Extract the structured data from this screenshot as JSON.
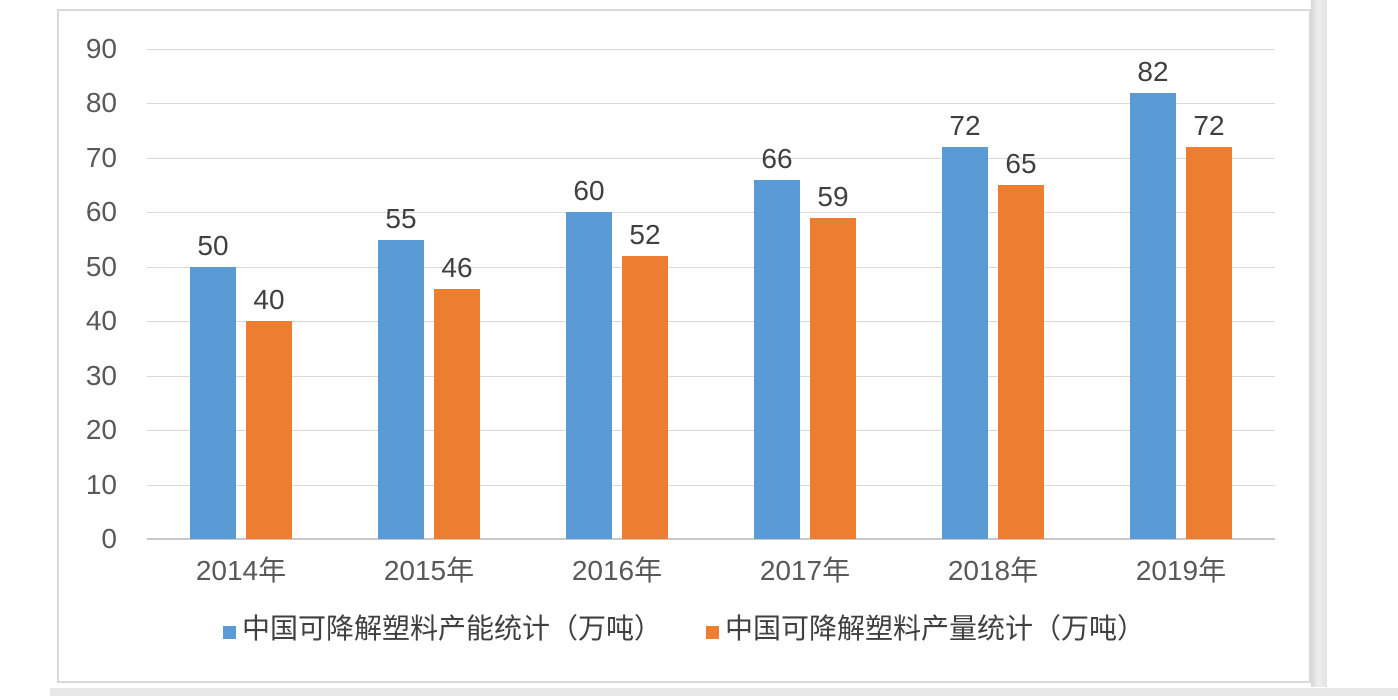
{
  "chart_data": {
    "type": "bar",
    "categories": [
      "2014年",
      "2015年",
      "2016年",
      "2017年",
      "2018年",
      "2019年"
    ],
    "series": [
      {
        "key": "capacity",
        "name": "中国可降解塑料产能统计（万吨）",
        "values": [
          50,
          55,
          60,
          66,
          72,
          82
        ],
        "color": "#5B9BD5"
      },
      {
        "key": "output",
        "name": "中国可降解塑料产量统计（万吨）",
        "values": [
          40,
          46,
          52,
          59,
          65,
          72
        ],
        "color": "#ED7D31"
      }
    ],
    "title": "",
    "xlabel": "",
    "ylabel": "",
    "ylim": [
      0,
      90
    ],
    "y_ticks": [
      0,
      10,
      20,
      30,
      40,
      50,
      60,
      70,
      80,
      90
    ],
    "grid": "horizontal",
    "legend_position": "bottom",
    "data_labels": true
  },
  "colors": {
    "series_capacity": "#5B9BD5",
    "series_output": "#ED7D31",
    "gridline": "#D9D9D9",
    "baseline": "#C8C8C8",
    "axis_text": "#595959",
    "label_text": "#404040",
    "panel_border": "#D9D9D9",
    "panel_background": "#FFFFFF",
    "edge_strip": "#E7E7E7"
  }
}
